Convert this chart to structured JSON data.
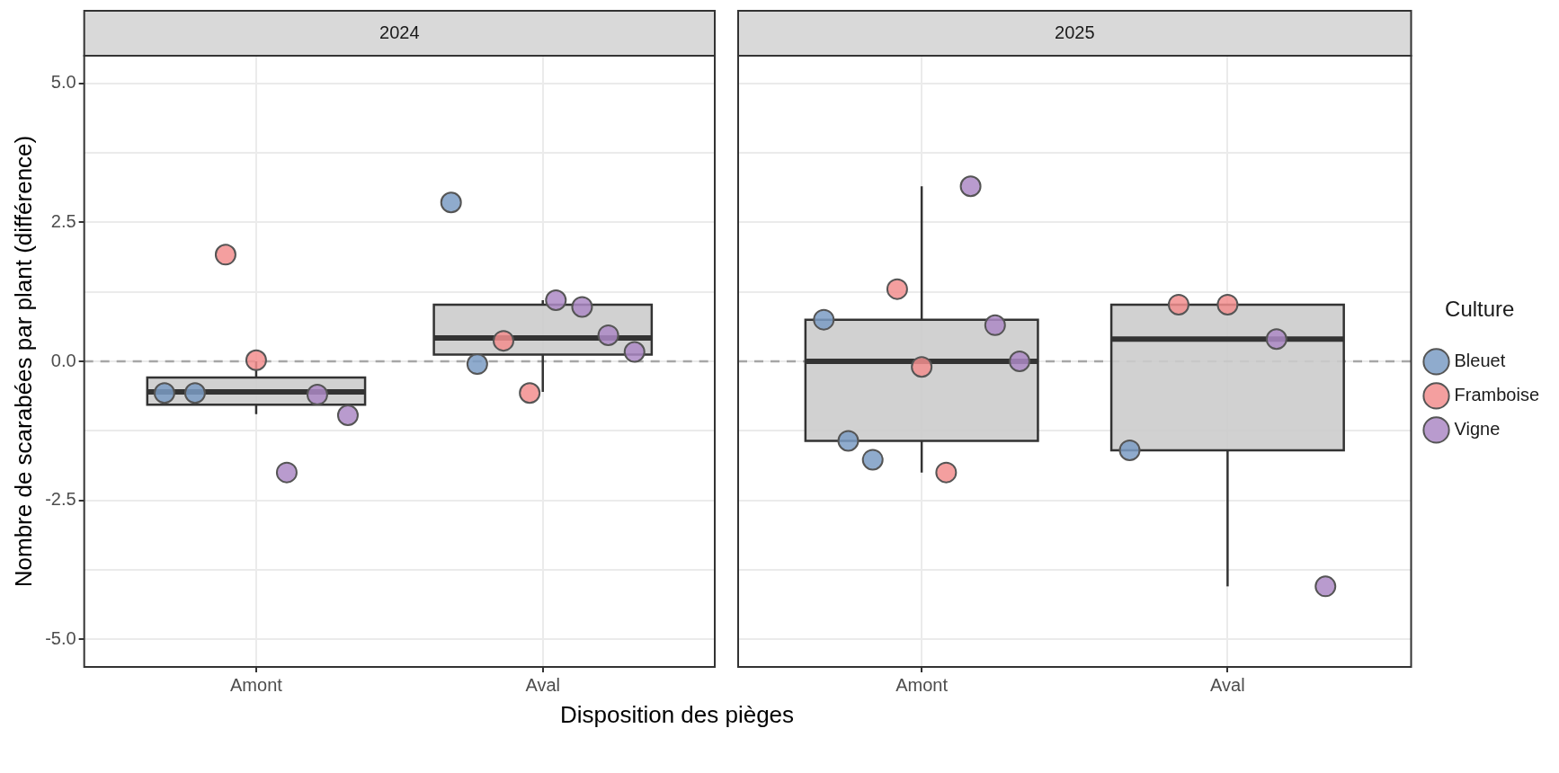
{
  "chart_data": [
    {
      "type": "box",
      "title": "2024",
      "ylabel": "Nombre de scarabées par plant (différence)",
      "xlabel": "Disposition des pièges",
      "categories": [
        "Amont",
        "Aval"
      ],
      "color": "#cccccc",
      "ylim": [
        -5.5,
        5.5
      ],
      "yticks": [
        {
          "value": -5,
          "label": "-5.0"
        },
        {
          "value": -3.75,
          "label": null
        },
        {
          "value": -2.5,
          "label": "-2.5"
        },
        {
          "value": -1.25,
          "label": null
        },
        {
          "value": 0,
          "label": "0.0"
        },
        {
          "value": 1.25,
          "label": null
        },
        {
          "value": 2.5,
          "label": "2.5"
        },
        {
          "value": 3.75,
          "label": null
        },
        {
          "value": 5,
          "label": "5.0"
        }
      ],
      "grid": true,
      "marker": "circle",
      "boxes": [
        {
          "low": -0.95,
          "q1": -0.78,
          "median": -0.55,
          "q3": -0.29,
          "high": 0.0
        },
        {
          "low": -0.55,
          "q1": 0.12,
          "median": 0.42,
          "q3": 1.02,
          "high": 1.1
        }
      ],
      "ref_lines": [
        {
          "axis": "y",
          "value": 0,
          "color": "#a6a6a6",
          "line_style": "dashed"
        }
      ],
      "series": [
        {
          "type": "scatter",
          "color": "#7b9cc4",
          "x": [
            "Amont",
            "Amont",
            "Aval",
            "Aval"
          ],
          "values": [
            -0.57,
            -0.57,
            2.86,
            -0.05
          ]
        },
        {
          "type": "scatter",
          "color": "#f28e8e",
          "x": [
            "Amont",
            "Amont",
            "Aval",
            "Aval"
          ],
          "values": [
            1.92,
            0.02,
            0.37,
            -0.57
          ]
        },
        {
          "type": "scatter",
          "color": "#ad89c5",
          "x": [
            "Amont",
            "Amont",
            "Amont",
            "Aval",
            "Aval",
            "Aval",
            "Aval"
          ],
          "values": [
            -2.0,
            -0.6,
            -0.97,
            1.1,
            0.98,
            0.47,
            0.17
          ]
        }
      ]
    },
    {
      "type": "box",
      "title": "2025",
      "categories": [
        "Amont",
        "Aval"
      ],
      "color": "#cccccc",
      "ylim": [
        -5.5,
        5.5
      ],
      "yticks": [
        {
          "value": -5,
          "label": null
        },
        {
          "value": -3.75,
          "label": null
        },
        {
          "value": -2.5,
          "label": null
        },
        {
          "value": -1.25,
          "label": null
        },
        {
          "value": 0,
          "label": null
        },
        {
          "value": 1.25,
          "label": null
        },
        {
          "value": 2.5,
          "label": null
        },
        {
          "value": 3.75,
          "label": null
        },
        {
          "value": 5,
          "label": null
        }
      ],
      "grid": true,
      "marker": "circle",
      "tick_labels": "x",
      "legend": "right",
      "legend_title": "Culture",
      "boxes": [
        {
          "low": -2.0,
          "q1": -1.43,
          "median": 0.0,
          "q3": 0.75,
          "high": 3.15
        },
        {
          "low": -4.05,
          "q1": -1.6,
          "median": 0.4,
          "q3": 1.02,
          "high": 1.02
        }
      ],
      "ref_lines": [
        {
          "axis": "y",
          "value": 0,
          "color": "#a6a6a6",
          "line_style": "dashed"
        }
      ],
      "series": [
        {
          "name": "Bleuet",
          "type": "scatter",
          "color": "#7b9cc4",
          "x": [
            "Amont",
            "Amont",
            "Amont",
            "Aval"
          ],
          "values": [
            0.75,
            -1.43,
            -1.77,
            -1.6
          ]
        },
        {
          "name": "Framboise",
          "type": "scatter",
          "color": "#f28e8e",
          "x": [
            "Amont",
            "Amont",
            "Amont",
            "Aval",
            "Aval"
          ],
          "values": [
            1.3,
            -0.1,
            -2.0,
            1.02,
            1.02
          ]
        },
        {
          "name": "Vigne",
          "type": "scatter",
          "color": "#ad89c5",
          "x": [
            "Amont",
            "Amont",
            "Amont",
            "Aval",
            "Aval"
          ],
          "values": [
            3.15,
            0.65,
            0.0,
            0.4,
            -4.05
          ]
        }
      ]
    }
  ]
}
